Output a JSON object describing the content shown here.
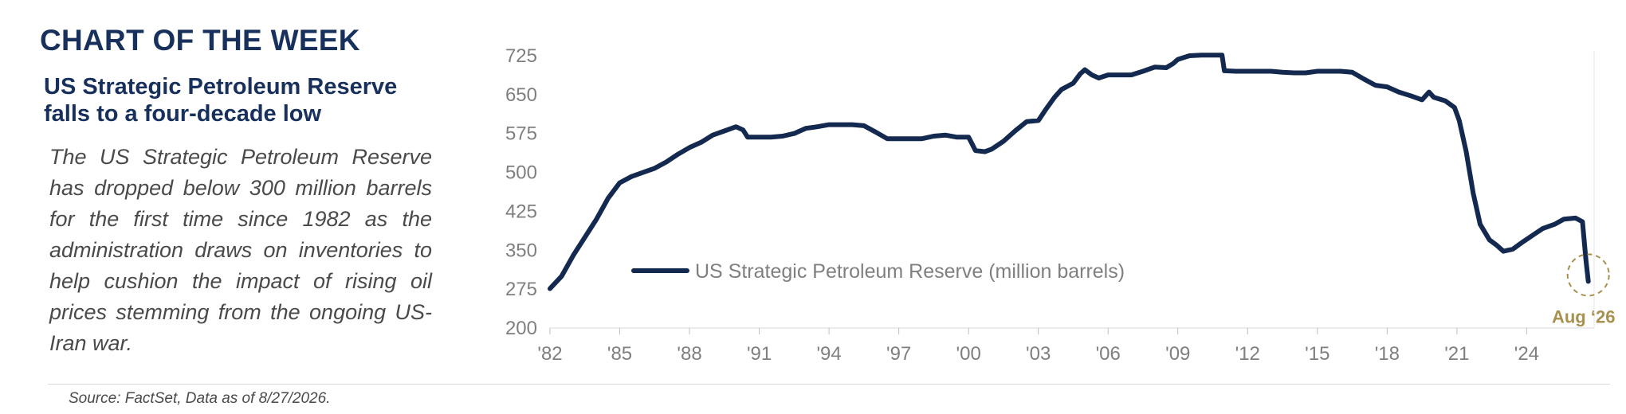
{
  "panel": {
    "kicker": "CHART OF THE WEEK",
    "headline": "US Strategic Petroleum Reserve falls to a four-decade low",
    "description": "The US Strategic Petroleum Reserve has dropped below 300 million barrels for the first time since 1982 as the administration draws on inventories to help cushion the impact of rising oil prices stemming from the ongoing US-Iran war.",
    "source": "Source: FactSet, Data as of 8/27/2026."
  },
  "colors": {
    "title": "#17305c",
    "series_line": "#14294f",
    "axis_text": "#7f7f7f",
    "callout": "#a8904f"
  },
  "chart_data": {
    "type": "line",
    "title": "",
    "xlabel": "",
    "ylabel": "",
    "ylim": [
      200,
      725
    ],
    "xlim": [
      1982,
      2026.9
    ],
    "grid": false,
    "legend_position": "left",
    "y_ticks": [
      "200",
      "275",
      "350",
      "425",
      "500",
      "575",
      "650",
      "725"
    ],
    "x_ticks": [
      {
        "value": 1982,
        "label": "'82"
      },
      {
        "value": 1985,
        "label": "'85"
      },
      {
        "value": 1988,
        "label": "'88"
      },
      {
        "value": 1991,
        "label": "'91"
      },
      {
        "value": 1994,
        "label": "'94"
      },
      {
        "value": 1997,
        "label": "'97"
      },
      {
        "value": 2000,
        "label": "'00"
      },
      {
        "value": 2003,
        "label": "'03"
      },
      {
        "value": 2006,
        "label": "'06"
      },
      {
        "value": 2009,
        "label": "'09"
      },
      {
        "value": 2012,
        "label": "'12"
      },
      {
        "value": 2015,
        "label": "'15"
      },
      {
        "value": 2018,
        "label": "'18"
      },
      {
        "value": 2021,
        "label": "'21"
      },
      {
        "value": 2024,
        "label": "'24"
      }
    ],
    "series": [
      {
        "name": "US Strategic Petroleum Reserve (million barrels)",
        "points": [
          [
            1982,
            276
          ],
          [
            1982.5,
            300
          ],
          [
            1983,
            340
          ],
          [
            1983.5,
            375
          ],
          [
            1984,
            410
          ],
          [
            1984.5,
            450
          ],
          [
            1985,
            480
          ],
          [
            1985.5,
            492
          ],
          [
            1986,
            500
          ],
          [
            1986.5,
            508
          ],
          [
            1987,
            520
          ],
          [
            1987.5,
            535
          ],
          [
            1988,
            548
          ],
          [
            1988.5,
            558
          ],
          [
            1989,
            572
          ],
          [
            1989.5,
            580
          ],
          [
            1990,
            588
          ],
          [
            1990.3,
            582
          ],
          [
            1990.5,
            568
          ],
          [
            1991,
            568
          ],
          [
            1991.5,
            568
          ],
          [
            1992,
            570
          ],
          [
            1992.5,
            575
          ],
          [
            1993,
            585
          ],
          [
            1993.5,
            588
          ],
          [
            1994,
            592
          ],
          [
            1994.5,
            592
          ],
          [
            1995,
            592
          ],
          [
            1995.5,
            590
          ],
          [
            1996,
            578
          ],
          [
            1996.5,
            565
          ],
          [
            1997,
            565
          ],
          [
            1997.5,
            565
          ],
          [
            1998,
            565
          ],
          [
            1998.5,
            570
          ],
          [
            1999,
            572
          ],
          [
            1999.5,
            568
          ],
          [
            2000,
            568
          ],
          [
            2000.3,
            542
          ],
          [
            2000.7,
            540
          ],
          [
            2001,
            545
          ],
          [
            2001.5,
            560
          ],
          [
            2002,
            580
          ],
          [
            2002.5,
            598
          ],
          [
            2003,
            600
          ],
          [
            2003.3,
            620
          ],
          [
            2003.7,
            645
          ],
          [
            2004,
            660
          ],
          [
            2004.5,
            672
          ],
          [
            2004.8,
            690
          ],
          [
            2005,
            698
          ],
          [
            2005.3,
            688
          ],
          [
            2005.6,
            682
          ],
          [
            2006,
            688
          ],
          [
            2006.5,
            688
          ],
          [
            2007,
            688
          ],
          [
            2007.5,
            695
          ],
          [
            2008,
            703
          ],
          [
            2008.5,
            702
          ],
          [
            2008.8,
            710
          ],
          [
            2009,
            718
          ],
          [
            2009.5,
            725
          ],
          [
            2010,
            726
          ],
          [
            2010.5,
            726
          ],
          [
            2010.9,
            726
          ],
          [
            2011,
            696
          ],
          [
            2011.5,
            695
          ],
          [
            2012,
            695
          ],
          [
            2012.5,
            695
          ],
          [
            2013,
            695
          ],
          [
            2013.5,
            693
          ],
          [
            2014,
            692
          ],
          [
            2014.5,
            692
          ],
          [
            2015,
            695
          ],
          [
            2015.5,
            695
          ],
          [
            2016,
            695
          ],
          [
            2016.5,
            693
          ],
          [
            2017,
            680
          ],
          [
            2017.5,
            668
          ],
          [
            2018,
            665
          ],
          [
            2018.5,
            655
          ],
          [
            2019,
            648
          ],
          [
            2019.5,
            640
          ],
          [
            2019.8,
            655
          ],
          [
            2020,
            645
          ],
          [
            2020.5,
            638
          ],
          [
            2020.9,
            625
          ],
          [
            2021.1,
            600
          ],
          [
            2021.4,
            540
          ],
          [
            2021.7,
            460
          ],
          [
            2022,
            400
          ],
          [
            2022.4,
            370
          ],
          [
            2022.7,
            360
          ],
          [
            2023,
            348
          ],
          [
            2023.4,
            352
          ],
          [
            2023.8,
            365
          ],
          [
            2024.3,
            380
          ],
          [
            2024.7,
            392
          ],
          [
            2025.2,
            400
          ],
          [
            2025.6,
            410
          ],
          [
            2026.1,
            412
          ],
          [
            2026.4,
            405
          ],
          [
            2026.55,
            330
          ],
          [
            2026.65,
            290
          ]
        ]
      }
    ],
    "annotations": [
      {
        "type": "circle",
        "x": 2026.65,
        "y": 290,
        "label": "Aug ‘26"
      }
    ]
  }
}
